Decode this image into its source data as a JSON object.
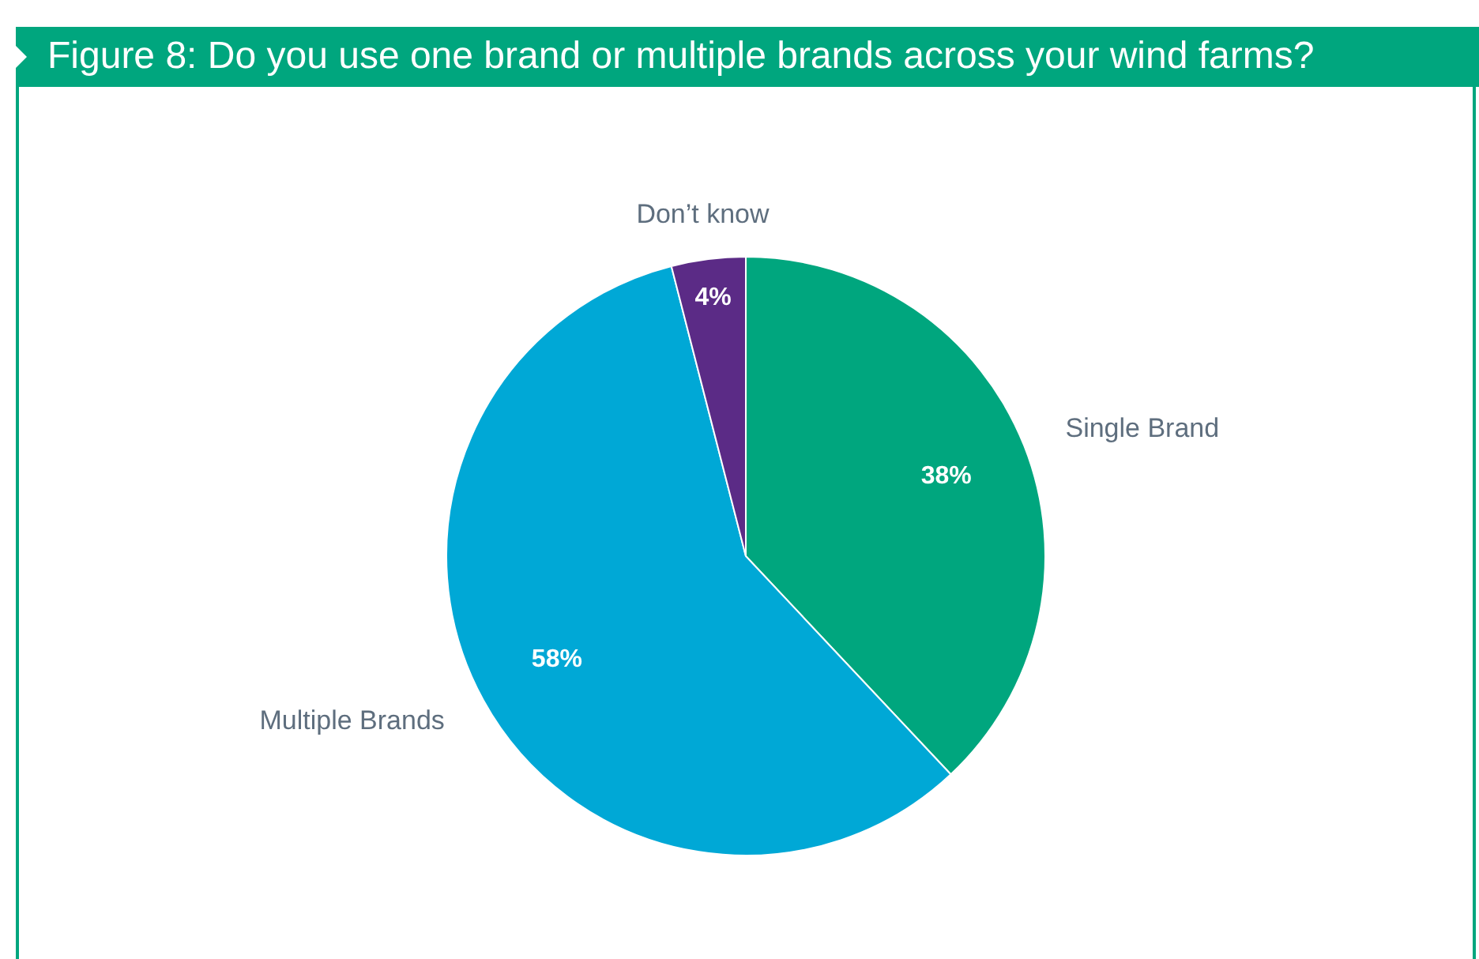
{
  "chart_data": {
    "type": "pie",
    "title": "Figure 8: Do you use one brand or multiple brands across your wind farms?",
    "categories": [
      "Single Brand",
      "Multiple Brands",
      "Don’t know"
    ],
    "values": [
      38,
      58,
      4
    ],
    "colors": [
      "#00a67e",
      "#00a8d6",
      "#5b2b86"
    ],
    "value_labels": [
      "38%",
      "58%",
      "4%"
    ],
    "legend": false
  }
}
